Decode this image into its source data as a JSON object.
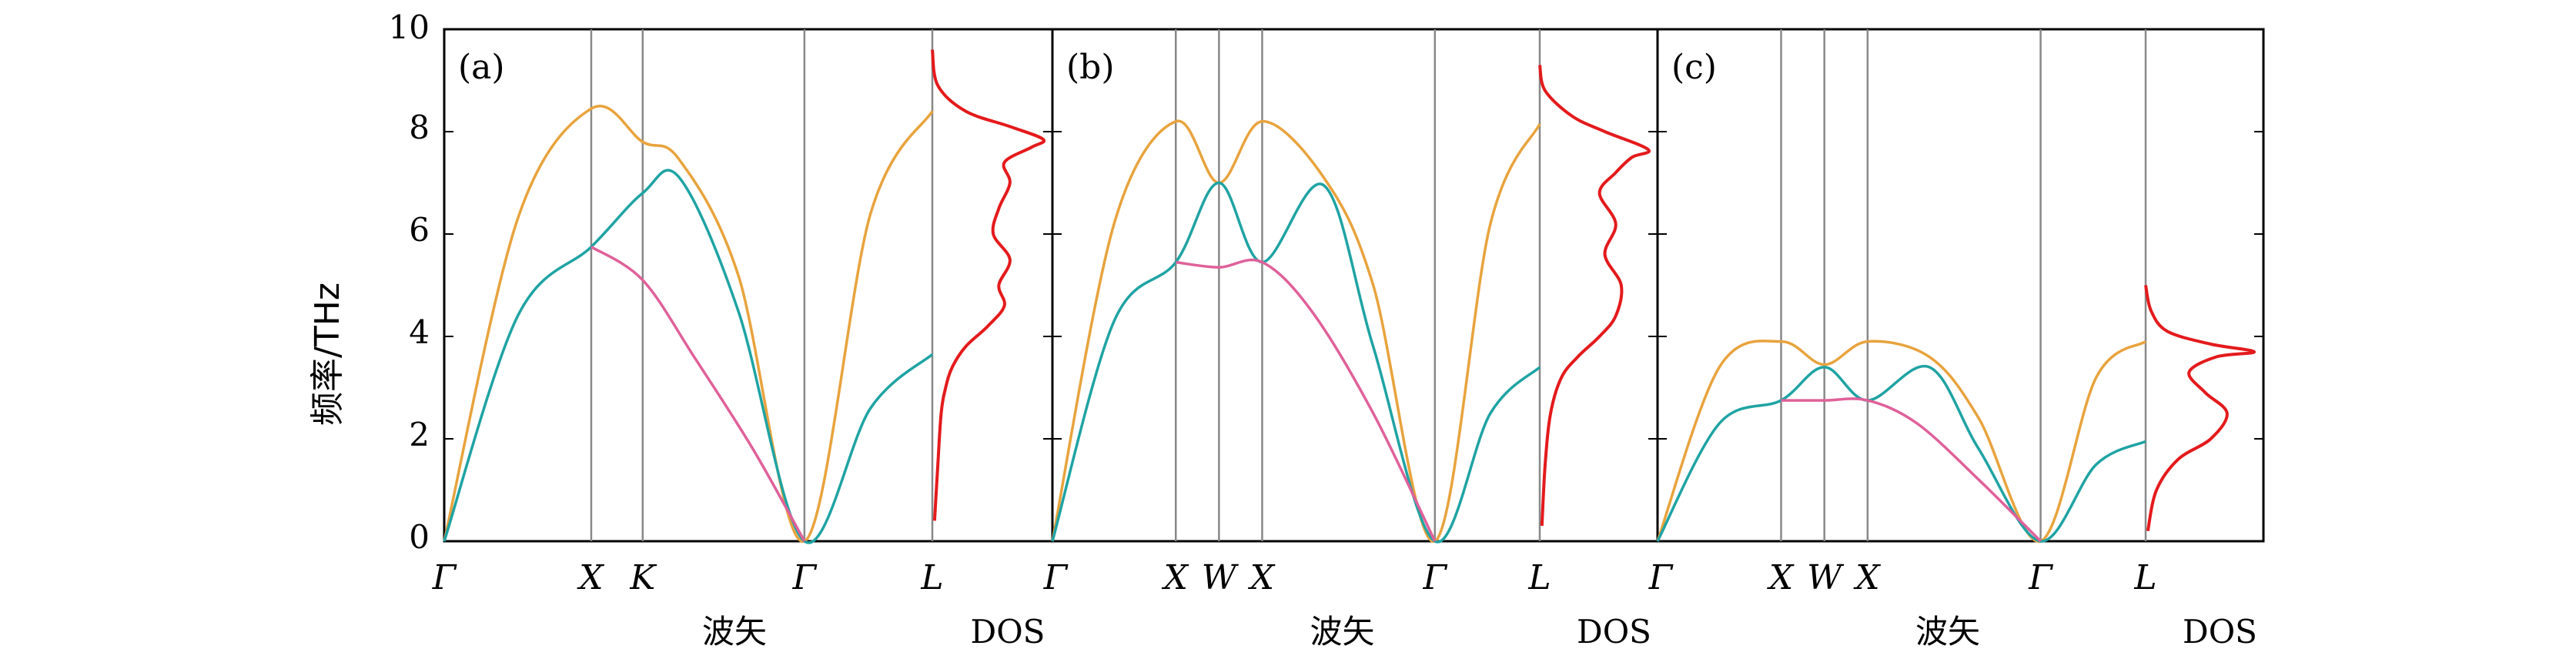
{
  "figure": {
    "ylabel": "频率/THz",
    "yticks": [
      "0",
      "2",
      "4",
      "6",
      "8",
      "10"
    ]
  },
  "chart_data": [
    {
      "type": "line",
      "panel_label": "(a)",
      "xlabel": "波矢",
      "dos_label": "DOS",
      "ylim": [
        0,
        10
      ],
      "kpoints": [
        {
          "label": "Γ",
          "pos": 0
        },
        {
          "label": "X",
          "pos": 1
        },
        {
          "label": "K",
          "pos": 1.35
        },
        {
          "label": "Γ",
          "pos": 2.45
        },
        {
          "label": "L",
          "pos": 3.32
        }
      ],
      "series": [
        {
          "color": "#e8a33d",
          "points": [
            [
              0,
              0
            ],
            [
              0.5,
              6.3
            ],
            [
              1,
              8.45
            ],
            [
              1.35,
              7.8
            ],
            [
              1.6,
              7.45
            ],
            [
              2.0,
              5.2
            ],
            [
              2.45,
              0
            ],
            [
              2.9,
              6.4
            ],
            [
              3.32,
              8.4
            ]
          ]
        },
        {
          "color": "#1fa3a3",
          "points": [
            [
              0,
              0
            ],
            [
              0.5,
              4.4
            ],
            [
              1,
              5.75
            ],
            [
              1.35,
              6.8
            ],
            [
              1.6,
              7.1
            ],
            [
              2.0,
              4.5
            ],
            [
              2.45,
              0
            ],
            [
              2.9,
              2.6
            ],
            [
              3.32,
              3.65
            ]
          ]
        },
        {
          "color": "#e0609a",
          "points": [
            [
              1,
              5.75
            ],
            [
              1.35,
              5.1
            ],
            [
              1.7,
              3.6
            ],
            [
              2.1,
              1.8
            ],
            [
              2.45,
              0
            ]
          ]
        }
      ],
      "dos": {
        "color": "#e41a1c",
        "points": [
          [
            0.02,
            0.4
          ],
          [
            0.05,
            1.5
          ],
          [
            0.08,
            2.5
          ],
          [
            0.12,
            3.0
          ],
          [
            0.18,
            3.4
          ],
          [
            0.3,
            3.8
          ],
          [
            0.5,
            4.2
          ],
          [
            0.65,
            4.6
          ],
          [
            0.6,
            5.0
          ],
          [
            0.7,
            5.5
          ],
          [
            0.55,
            6.0
          ],
          [
            0.6,
            6.5
          ],
          [
            0.7,
            7.0
          ],
          [
            0.65,
            7.4
          ],
          [
            0.9,
            7.7
          ],
          [
            1.0,
            7.85
          ],
          [
            0.7,
            8.1
          ],
          [
            0.3,
            8.4
          ],
          [
            0.05,
            8.9
          ],
          [
            0.0,
            9.6
          ]
        ]
      }
    },
    {
      "type": "line",
      "panel_label": "(b)",
      "xlabel": "波矢",
      "dos_label": "DOS",
      "ylim": [
        0,
        10
      ],
      "kpoints": [
        {
          "label": "Γ",
          "pos": 0
        },
        {
          "label": "X",
          "pos": 1
        },
        {
          "label": "W",
          "pos": 1.35
        },
        {
          "label": "X",
          "pos": 1.7
        },
        {
          "label": "Γ",
          "pos": 3.1
        },
        {
          "label": "L",
          "pos": 3.95
        }
      ],
      "series": [
        {
          "color": "#e8a33d",
          "points": [
            [
              0,
              0
            ],
            [
              0.5,
              6.2
            ],
            [
              1,
              8.2
            ],
            [
              1.35,
              7.0
            ],
            [
              1.7,
              8.2
            ],
            [
              2.2,
              7.1
            ],
            [
              2.6,
              5.0
            ],
            [
              3.1,
              0
            ],
            [
              3.55,
              6.2
            ],
            [
              3.95,
              8.15
            ]
          ]
        },
        {
          "color": "#1fa3a3",
          "points": [
            [
              0,
              0
            ],
            [
              0.5,
              4.3
            ],
            [
              1,
              5.45
            ],
            [
              1.35,
              7.0
            ],
            [
              1.7,
              5.45
            ],
            [
              2.2,
              6.95
            ],
            [
              2.6,
              3.8
            ],
            [
              3.1,
              0
            ],
            [
              3.55,
              2.5
            ],
            [
              3.95,
              3.4
            ]
          ]
        },
        {
          "color": "#e0609a",
          "points": [
            [
              1,
              5.45
            ],
            [
              1.35,
              5.35
            ],
            [
              1.7,
              5.45
            ],
            [
              2.1,
              4.5
            ],
            [
              2.6,
              2.5
            ],
            [
              3.1,
              0
            ]
          ]
        }
      ],
      "dos": {
        "color": "#e41a1c",
        "points": [
          [
            0.02,
            0.3
          ],
          [
            0.05,
            1.5
          ],
          [
            0.1,
            2.5
          ],
          [
            0.2,
            3.2
          ],
          [
            0.35,
            3.6
          ],
          [
            0.55,
            4.0
          ],
          [
            0.7,
            4.4
          ],
          [
            0.75,
            5.0
          ],
          [
            0.6,
            5.6
          ],
          [
            0.7,
            6.2
          ],
          [
            0.55,
            6.8
          ],
          [
            0.7,
            7.2
          ],
          [
            0.85,
            7.5
          ],
          [
            1.0,
            7.65
          ],
          [
            0.6,
            8.0
          ],
          [
            0.3,
            8.3
          ],
          [
            0.05,
            8.8
          ],
          [
            0.0,
            9.3
          ]
        ]
      }
    },
    {
      "type": "line",
      "panel_label": "(c)",
      "xlabel": "波矢",
      "dos_label": "DOS",
      "ylim": [
        0,
        10
      ],
      "kpoints": [
        {
          "label": "Γ",
          "pos": 0
        },
        {
          "label": "X",
          "pos": 1
        },
        {
          "label": "W",
          "pos": 1.35
        },
        {
          "label": "X",
          "pos": 1.7
        },
        {
          "label": "Γ",
          "pos": 3.1
        },
        {
          "label": "L",
          "pos": 3.95
        }
      ],
      "series": [
        {
          "color": "#e8a33d",
          "points": [
            [
              0,
              0
            ],
            [
              0.5,
              3.4
            ],
            [
              1,
              3.9
            ],
            [
              1.35,
              3.45
            ],
            [
              1.7,
              3.9
            ],
            [
              2.2,
              3.6
            ],
            [
              2.6,
              2.4
            ],
            [
              3.1,
              0
            ],
            [
              3.55,
              3.2
            ],
            [
              3.95,
              3.9
            ]
          ]
        },
        {
          "color": "#1fa3a3",
          "points": [
            [
              0,
              0
            ],
            [
              0.5,
              2.3
            ],
            [
              1,
              2.75
            ],
            [
              1.35,
              3.4
            ],
            [
              1.7,
              2.75
            ],
            [
              2.2,
              3.4
            ],
            [
              2.6,
              1.8
            ],
            [
              3.1,
              0
            ],
            [
              3.55,
              1.5
            ],
            [
              3.95,
              1.95
            ]
          ]
        },
        {
          "color": "#e0609a",
          "points": [
            [
              1,
              2.75
            ],
            [
              1.35,
              2.75
            ],
            [
              1.7,
              2.75
            ],
            [
              2.1,
              2.3
            ],
            [
              2.6,
              1.2
            ],
            [
              3.1,
              0
            ]
          ]
        }
      ],
      "dos": {
        "color": "#e41a1c",
        "points": [
          [
            0.02,
            0.2
          ],
          [
            0.1,
            1.0
          ],
          [
            0.3,
            1.6
          ],
          [
            0.6,
            2.0
          ],
          [
            0.75,
            2.5
          ],
          [
            0.55,
            2.9
          ],
          [
            0.4,
            3.3
          ],
          [
            0.65,
            3.6
          ],
          [
            1.0,
            3.7
          ],
          [
            0.6,
            3.85
          ],
          [
            0.2,
            4.1
          ],
          [
            0.05,
            4.5
          ],
          [
            0.0,
            5.0
          ]
        ]
      }
    }
  ]
}
